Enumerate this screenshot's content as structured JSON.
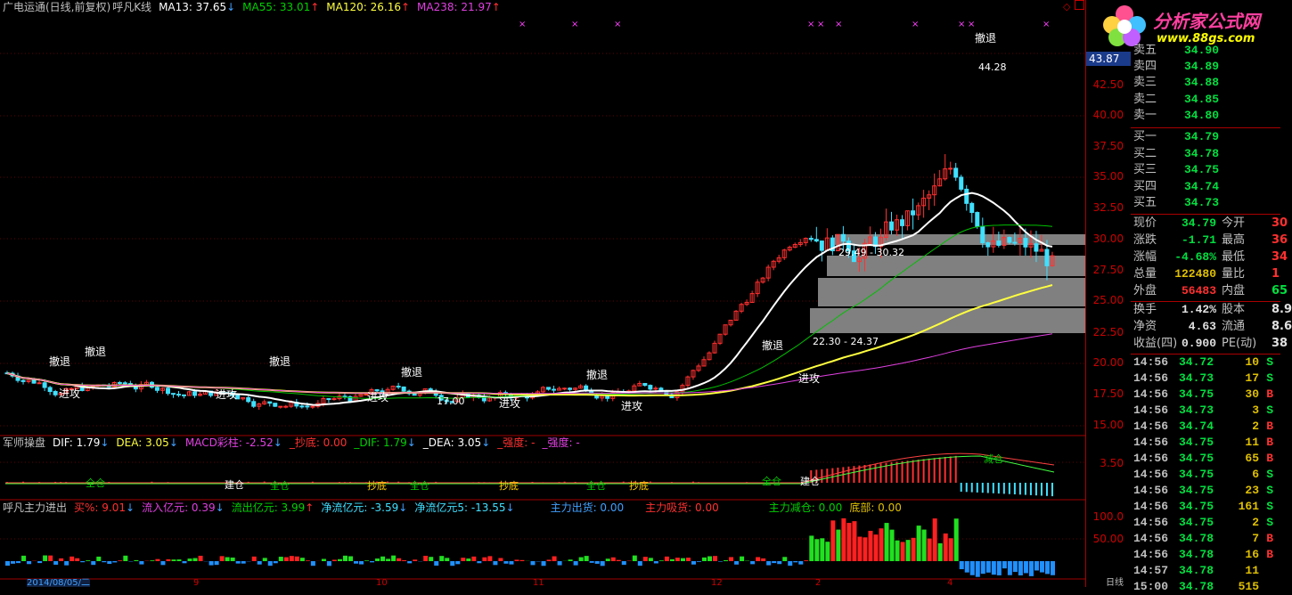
{
  "main_header": {
    "title": "广电运通(日线,前复权)",
    "indicator": "呼凡K线",
    "ma13": "MA13: 37.65",
    "ma13_arrow": "↓",
    "ma55": "MA55: 33.01",
    "ma55_arrow": "↑",
    "ma120": "MA120: 26.16",
    "ma120_arrow": "↑",
    "ma238": "MA238: 21.97",
    "ma238_arrow": "↑"
  },
  "macd_header": {
    "name": "军师操盘",
    "dif": "DIF: 1.79",
    "dif_arrow": "↓",
    "dea": "DEA: 3.05",
    "dea_arrow": "↓",
    "macd": "MACD彩柱: -2.52",
    "macd_arrow": "↓",
    "chaodi": "_抄底: 0.00",
    "dif2": "_DIF: 1.79",
    "dif2_arrow": "↓",
    "dea2": "_DEA: 3.05",
    "dea2_arrow": "↓",
    "qiangdu1": "_强度: -",
    "qiangdu2": "_强度: -"
  },
  "flow_header": {
    "name": "呼凡主力进出",
    "buy_pct": "买%: 9.01",
    "buy_arrow": "↓",
    "inflow": "流入亿元: 0.39",
    "inflow_arrow": "↓",
    "outflow": "流出亿元: 3.99",
    "outflow_arrow": "↑",
    "netflow": "净流亿元: -3.59",
    "netflow_arrow": "↓",
    "netflow5": "净流亿元5: -13.55",
    "netflow5_arrow": "↓",
    "zl_out": "主力出货: 0.00",
    "zl_in": "主力吸货: 0.00",
    "zl_reduce": "主力减仓: 0.00",
    "bottom": "底部: 0.00"
  },
  "price_axis": [
    "42.50",
    "40.00",
    "37.50",
    "35.00",
    "32.50",
    "30.00",
    "27.50",
    "25.00",
    "22.50",
    "20.00",
    "17.50",
    "15.00"
  ],
  "macd_axis": "3.50",
  "flow_axis": [
    "100.0",
    "50.00"
  ],
  "current_price_box": "43.87",
  "annotations": {
    "cheti": "撤退",
    "jingong": "进攻",
    "high": "44.28",
    "low": "17.00",
    "zone1": "29.49 - 30.32",
    "zone2": "22.30 - 24.37",
    "jiancang": "减仓",
    "jiancang2": "建仓",
    "quancang": "全仓",
    "chaodi": "抄底"
  },
  "date_axis": {
    "first": "2014/08/05/二",
    "months": [
      "9",
      "10",
      "11",
      "12",
      "2",
      "4"
    ],
    "period": "日线"
  },
  "logo": {
    "brand": "分析家公式网",
    "url": "www.88gs.com"
  },
  "order_book": {
    "sells": [
      {
        "label": "卖五",
        "price": "34.90"
      },
      {
        "label": "卖四",
        "price": "34.89"
      },
      {
        "label": "卖三",
        "price": "34.88"
      },
      {
        "label": "卖二",
        "price": "34.85"
      },
      {
        "label": "卖一",
        "price": "34.80"
      }
    ],
    "buys": [
      {
        "label": "买一",
        "price": "34.79"
      },
      {
        "label": "买二",
        "price": "34.78"
      },
      {
        "label": "买三",
        "price": "34.75"
      },
      {
        "label": "买四",
        "price": "34.74"
      },
      {
        "label": "买五",
        "price": "34.73"
      }
    ]
  },
  "quote": [
    {
      "k": "现价",
      "v": "34.79",
      "k2": "今开",
      "v2": "30"
    },
    {
      "k": "涨跌",
      "v": "-1.71",
      "k2": "最高",
      "v2": "36"
    },
    {
      "k": "涨幅",
      "v": "-4.68%",
      "k2": "最低",
      "v2": "34"
    },
    {
      "k": "总量",
      "v": "122480",
      "k2": "量比",
      "v2": "1"
    },
    {
      "k": "外盘",
      "v": "56483",
      "k2": "内盘",
      "v2": "65"
    }
  ],
  "fundamentals": [
    {
      "k": "换手",
      "v": "1.42%",
      "k2": "股本",
      "v2": "8.9"
    },
    {
      "k": "净资",
      "v": "4.63",
      "k2": "流通",
      "v2": "8.6"
    },
    {
      "k": "收益(四)",
      "v": "0.900",
      "k2": "PE(动)",
      "v2": "38"
    }
  ],
  "ticks": [
    {
      "t": "14:56",
      "p": "34.72",
      "q": "10",
      "d": "S"
    },
    {
      "t": "14:56",
      "p": "34.73",
      "q": "17",
      "d": "S"
    },
    {
      "t": "14:56",
      "p": "34.75",
      "q": "30",
      "d": "B"
    },
    {
      "t": "14:56",
      "p": "34.73",
      "q": "3",
      "d": "S"
    },
    {
      "t": "14:56",
      "p": "34.74",
      "q": "2",
      "d": "B"
    },
    {
      "t": "14:56",
      "p": "34.75",
      "q": "11",
      "d": "B"
    },
    {
      "t": "14:56",
      "p": "34.75",
      "q": "65",
      "d": "B"
    },
    {
      "t": "14:56",
      "p": "34.75",
      "q": "6",
      "d": "S"
    },
    {
      "t": "14:56",
      "p": "34.75",
      "q": "23",
      "d": "S"
    },
    {
      "t": "14:56",
      "p": "34.75",
      "q": "161",
      "d": "S"
    },
    {
      "t": "14:56",
      "p": "34.75",
      "q": "2",
      "d": "S"
    },
    {
      "t": "14:56",
      "p": "34.78",
      "q": "7",
      "d": "B"
    },
    {
      "t": "14:56",
      "p": "34.78",
      "q": "16",
      "d": "B"
    },
    {
      "t": "14:57",
      "p": "34.78",
      "q": "11",
      "d": ""
    },
    {
      "t": "15:00",
      "p": "34.78",
      "q": "515",
      "d": ""
    }
  ],
  "colors": {
    "up": "#ff3030",
    "down": "#40e0ff",
    "ma13": "#ffffff",
    "ma55": "#00c000",
    "ma120": "#ffff40",
    "ma238": "#e040e0",
    "grid": "#800000"
  }
}
